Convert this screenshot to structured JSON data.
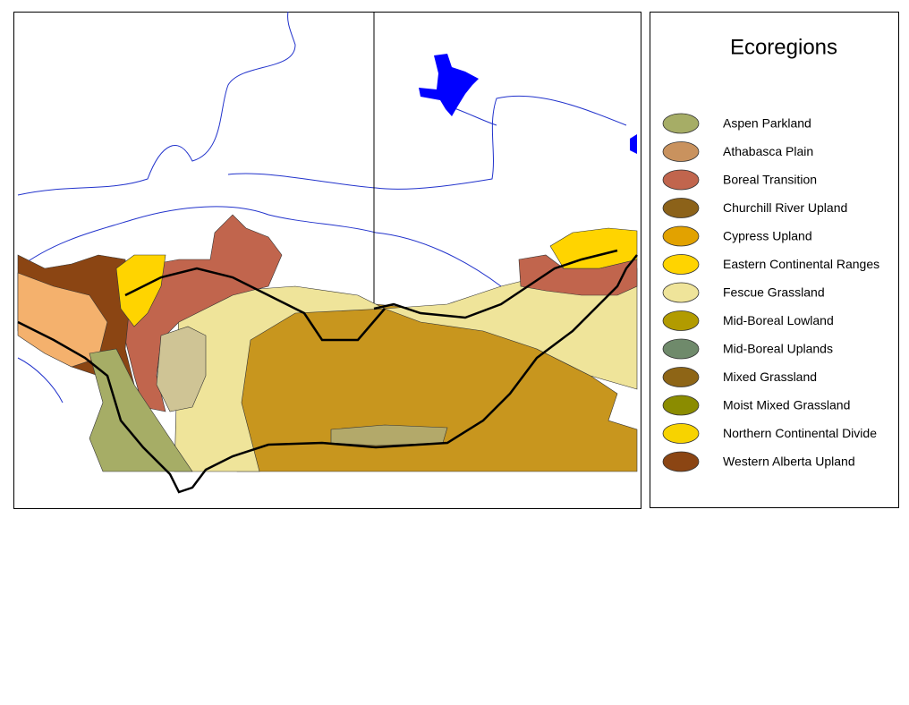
{
  "legend": {
    "title": "Ecoregions",
    "items": [
      {
        "label": "Aspen Parkland",
        "color": "#a6ad66"
      },
      {
        "label": "Athabasca Plain",
        "color": "#c9925e"
      },
      {
        "label": "Boreal Transition",
        "color": "#c1654d"
      },
      {
        "label": "Churchill River Upland",
        "color": "#8c6219"
      },
      {
        "label": "Cypress Upland",
        "color": "#e2a200"
      },
      {
        "label": "Eastern Continental Ranges",
        "color": "#ffd400"
      },
      {
        "label": "Fescue Grassland",
        "color": "#efe49a"
      },
      {
        "label": "Mid-Boreal Lowland",
        "color": "#b29b00"
      },
      {
        "label": "Mid-Boreal Uplands",
        "color": "#6f8a6b"
      },
      {
        "label": "Mixed Grassland",
        "color": "#8e6516"
      },
      {
        "label": "Moist Mixed Grassland",
        "color": "#8b8c00"
      },
      {
        "label": "Northern Continental Divide",
        "color": "#f7d300"
      },
      {
        "label": "Western Alberta Upland",
        "color": "#8b4513"
      }
    ]
  }
}
